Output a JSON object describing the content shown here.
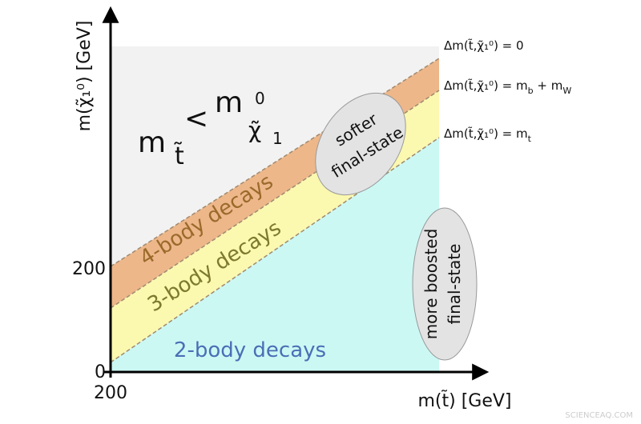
{
  "axes": {
    "y_label": "m(χ̃₁⁰) [GeV]",
    "x_label": "m(t̃) [GeV]",
    "y_ticks": [
      "200",
      "0"
    ],
    "x_ticks": [
      "200"
    ]
  },
  "regions": {
    "forbidden": {
      "left": "m",
      "left_sub": "t̃",
      "op": "<",
      "right": "m",
      "right_sub": "χ̃",
      "right_sub_index": "1",
      "right_sup": "0"
    },
    "four_body": "4-body decays",
    "three_body": "3-body decays",
    "two_body": "2-body decays"
  },
  "boundaries": [
    [
      "Δm(t̃,χ̃₁⁰) = 0"
    ],
    [
      "Δm(t̃,χ̃₁⁰) = m",
      "b",
      " + m",
      "W"
    ],
    [
      "Δm(t̃,χ̃₁⁰) = m",
      "t"
    ]
  ],
  "callouts": {
    "softer": [
      "softer",
      "final-state"
    ],
    "boosted": [
      "more boosted",
      "final-state"
    ]
  },
  "watermark": "SCIENCEAQ.COM"
}
